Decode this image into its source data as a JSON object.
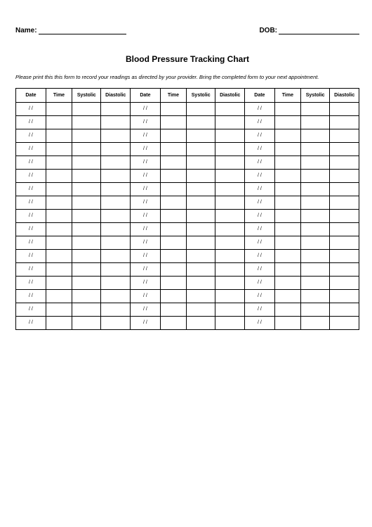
{
  "fields": {
    "name_label": "Name:",
    "dob_label": "DOB:"
  },
  "title": "Blood Pressure Tracking Chart",
  "instructions": "Please print this this form to record your readings as directed by your provider. Bring the completed form to your next appointment.",
  "table": {
    "columns": [
      "Date",
      "Time",
      "Systolic",
      "Diastolic",
      "Date",
      "Time",
      "Systolic",
      "Diastolic",
      "Date",
      "Time",
      "Systolic",
      "Diastolic"
    ],
    "row_count": 17,
    "date_placeholder": "/   /"
  }
}
